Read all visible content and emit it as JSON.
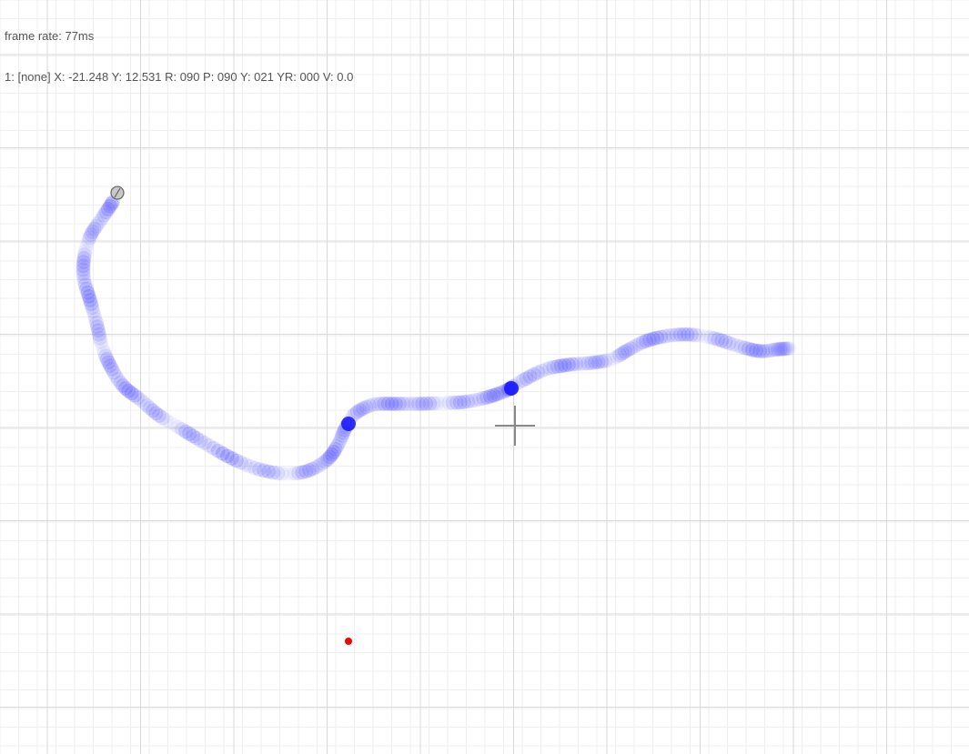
{
  "hud": {
    "frame_rate": "frame rate: 77ms",
    "status": "1: [none] X: -21.248 Y: 12.531 R: 090 P: 090 Y: 021 YR: 000 V: 0.0"
  },
  "colors": {
    "grid_minor": "#efefef",
    "grid_major": "#d9d9d9",
    "trail": "#5a5aff",
    "trail_dense": "#1010ff",
    "cursor": "#888888",
    "origin_dot": "#ff0000",
    "robot_fill": "#c8c8c8",
    "robot_stroke": "#666666"
  },
  "icons": {
    "cursor": "crosshair-icon",
    "robot": "robot-marker-icon",
    "origin": "red-dot-icon"
  }
}
